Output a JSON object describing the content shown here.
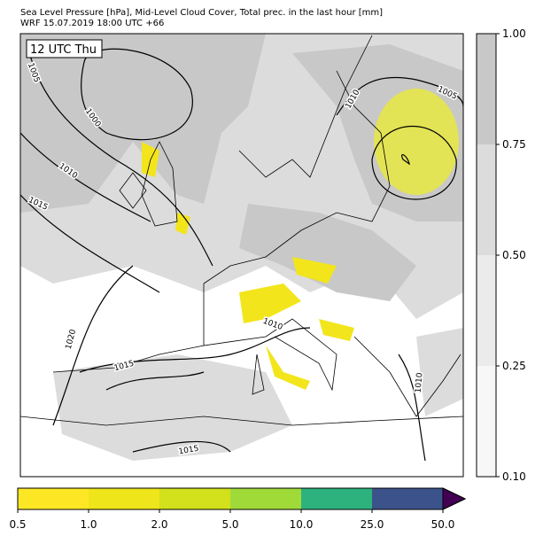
{
  "header": {
    "title_line1": "Sea Level Pressure [hPa], Mid-Level Cloud Cover, Total prec. in the last hour [mm]",
    "title_line2": "WRF 15.07.2019 18:00 UTC +66"
  },
  "map": {
    "time_label": "12 UTC Thu",
    "isobar_labels": [
      "1005",
      "1000",
      "1010",
      "1015",
      "1020",
      "1015",
      "1015",
      "1010",
      "1010",
      "1005",
      "1010"
    ]
  },
  "cloud_colorbar": {
    "ticks": [
      "1.00",
      "0.75",
      "0.50",
      "0.25",
      "0.10"
    ]
  },
  "precip_colorbar": {
    "ticks": [
      "0.5",
      "1.0",
      "2.0",
      "5.0",
      "10.0",
      "25.0",
      "50.0"
    ]
  }
}
